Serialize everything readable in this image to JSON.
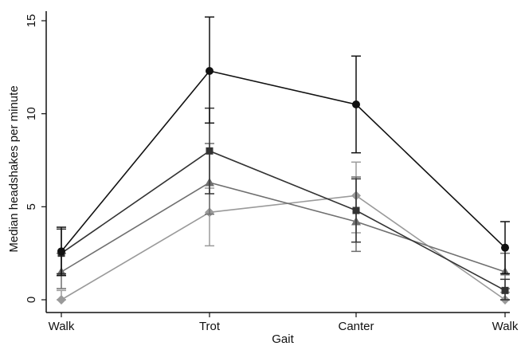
{
  "chart_data": {
    "type": "line",
    "title": "",
    "xlabel": "Gait",
    "ylabel": "Median headshakes per minute",
    "categories": [
      "Walk",
      "Trot",
      "Canter",
      "Walk"
    ],
    "ylim": [
      0,
      15
    ],
    "yticks": [
      0,
      5,
      10,
      15
    ],
    "grid": false,
    "legend": "none",
    "series": [
      {
        "marker": "circle",
        "color": "#111111",
        "values": [
          2.6,
          12.3,
          10.5,
          2.8
        ],
        "err_low": [
          1.3,
          9.5,
          7.9,
          1.4
        ],
        "err_high": [
          3.9,
          15.2,
          13.1,
          4.2
        ]
      },
      {
        "marker": "square",
        "color": "#333333",
        "values": [
          2.5,
          8.0,
          4.8,
          0.5
        ],
        "err_low": [
          1.4,
          5.7,
          3.1,
          0.0
        ],
        "err_high": [
          3.8,
          10.3,
          6.5,
          1.1
        ]
      },
      {
        "marker": "triangle",
        "color": "#6f6f6f",
        "values": [
          1.5,
          6.3,
          4.2,
          1.5
        ],
        "err_low": [
          0.6,
          4.6,
          2.6,
          0.6
        ],
        "err_high": [
          2.5,
          8.4,
          6.6,
          2.5
        ]
      },
      {
        "marker": "diamond",
        "color": "#9a9a9a",
        "values": [
          0.0,
          4.7,
          5.6,
          0.0
        ],
        "err_low": [
          0.0,
          2.9,
          3.6,
          0.0
        ],
        "err_high": [
          0.5,
          6.0,
          7.4,
          0.4
        ]
      }
    ]
  }
}
